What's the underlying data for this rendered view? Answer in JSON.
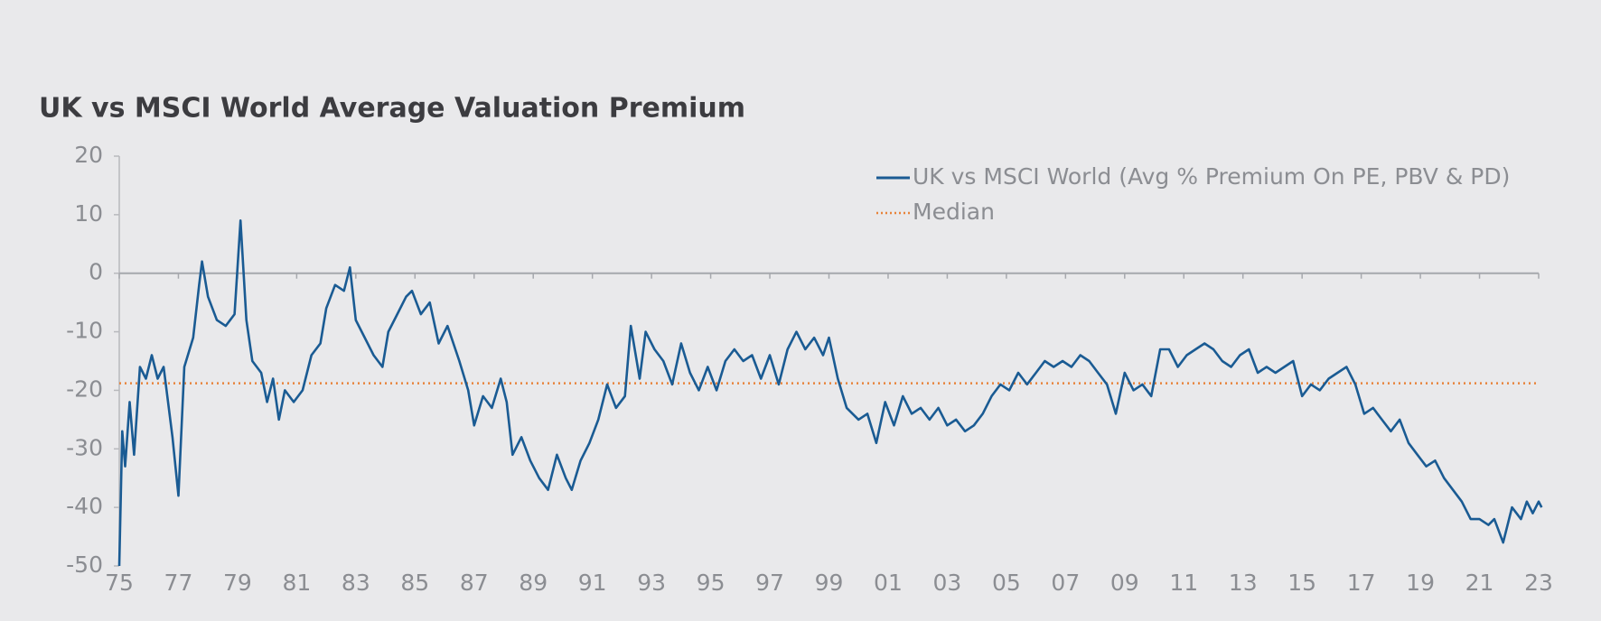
{
  "chart_data": {
    "type": "line",
    "title": "UK vs MSCI World Average Valuation Premium",
    "x": [
      1975.0,
      1975.1,
      1975.2,
      1975.35,
      1975.5,
      1975.7,
      1975.9,
      1976.1,
      1976.3,
      1976.5,
      1976.8,
      1977.0,
      1977.2,
      1977.5,
      1977.7,
      1977.8,
      1978.0,
      1978.3,
      1978.6,
      1978.9,
      1979.1,
      1979.3,
      1979.5,
      1979.8,
      1980.0,
      1980.2,
      1980.4,
      1980.6,
      1980.9,
      1981.2,
      1981.5,
      1981.8,
      1982.0,
      1982.3,
      1982.6,
      1982.8,
      1983.0,
      1983.3,
      1983.6,
      1983.9,
      1984.1,
      1984.4,
      1984.7,
      1984.9,
      1985.2,
      1985.5,
      1985.8,
      1986.1,
      1986.5,
      1986.8,
      1987.0,
      1987.3,
      1987.6,
      1987.9,
      1988.1,
      1988.3,
      1988.6,
      1988.9,
      1989.2,
      1989.5,
      1989.8,
      1990.1,
      1990.3,
      1990.6,
      1990.9,
      1991.2,
      1991.5,
      1991.8,
      1992.1,
      1992.3,
      1992.6,
      1992.8,
      1993.1,
      1993.4,
      1993.7,
      1994.0,
      1994.3,
      1994.6,
      1994.9,
      1995.2,
      1995.5,
      1995.8,
      1996.1,
      1996.4,
      1996.7,
      1997.0,
      1997.3,
      1997.6,
      1997.9,
      1998.2,
      1998.5,
      1998.8,
      1999.0,
      1999.3,
      1999.6,
      2000.0,
      2000.3,
      2000.6,
      2000.9,
      2001.2,
      2001.5,
      2001.8,
      2002.1,
      2002.4,
      2002.7,
      2003.0,
      2003.3,
      2003.6,
      2003.9,
      2004.2,
      2004.5,
      2004.8,
      2005.1,
      2005.4,
      2005.7,
      2006.0,
      2006.3,
      2006.6,
      2006.9,
      2007.2,
      2007.5,
      2007.8,
      2008.1,
      2008.4,
      2008.7,
      2009.0,
      2009.3,
      2009.6,
      2009.9,
      2010.2,
      2010.5,
      2010.8,
      2011.1,
      2011.4,
      2011.7,
      2012.0,
      2012.3,
      2012.6,
      2012.9,
      2013.2,
      2013.5,
      2013.8,
      2014.1,
      2014.4,
      2014.7,
      2015.0,
      2015.3,
      2015.6,
      2015.9,
      2016.2,
      2016.5,
      2016.8,
      2017.1,
      2017.4,
      2017.7,
      2018.0,
      2018.3,
      2018.6,
      2018.9,
      2019.2,
      2019.5,
      2019.8,
      2020.1,
      2020.4,
      2020.7,
      2021.0,
      2021.3,
      2021.5,
      2021.8,
      2022.1,
      2022.4,
      2022.6,
      2022.8,
      2023.0,
      2023.1
    ],
    "series": [
      {
        "name": "UK vs MSCI World (Avg % Premium On PE, PBV & PD)",
        "color": "#1a5b93",
        "values": [
          -50,
          -27,
          -33,
          -22,
          -31,
          -16,
          -18,
          -14,
          -18,
          -16,
          -28,
          -38,
          -16,
          -11,
          -2,
          2,
          -4,
          -8,
          -9,
          -7,
          9,
          -8,
          -15,
          -17,
          -22,
          -18,
          -25,
          -20,
          -22,
          -20,
          -14,
          -12,
          -6,
          -2,
          -3,
          1,
          -8,
          -11,
          -14,
          -16,
          -10,
          -7,
          -4,
          -3,
          -7,
          -5,
          -12,
          -9,
          -15,
          -20,
          -26,
          -21,
          -23,
          -18,
          -22,
          -31,
          -28,
          -32,
          -35,
          -37,
          -31,
          -35,
          -37,
          -32,
          -29,
          -25,
          -19,
          -23,
          -21,
          -9,
          -18,
          -10,
          -13,
          -15,
          -19,
          -12,
          -17,
          -20,
          -16,
          -20,
          -15,
          -13,
          -15,
          -14,
          -18,
          -14,
          -19,
          -13,
          -10,
          -13,
          -11,
          -14,
          -11,
          -18,
          -23,
          -25,
          -24,
          -29,
          -22,
          -26,
          -21,
          -24,
          -23,
          -25,
          -23,
          -26,
          -25,
          -27,
          -26,
          -24,
          -21,
          -19,
          -20,
          -17,
          -19,
          -17,
          -15,
          -16,
          -15,
          -16,
          -14,
          -15,
          -17,
          -19,
          -24,
          -17,
          -20,
          -19,
          -21,
          -13,
          -13,
          -16,
          -14,
          -13,
          -12,
          -13,
          -15,
          -16,
          -14,
          -13,
          -17,
          -16,
          -17,
          -16,
          -15,
          -21,
          -19,
          -20,
          -18,
          -17,
          -16,
          -19,
          -24,
          -23,
          -25,
          -27,
          -25,
          -29,
          -31,
          -33,
          -32,
          -35,
          -37,
          -39,
          -42,
          -42,
          -43,
          -42,
          -46,
          -40,
          -42,
          -39,
          -41,
          -39,
          -40
        ]
      }
    ],
    "reference_lines": [
      {
        "name": "Median",
        "color": "#e8833a",
        "value": -18.8,
        "style": "dotted"
      }
    ],
    "xlim": [
      1975,
      2023
    ],
    "xticks": [
      {
        "value": 1975,
        "label": "75"
      },
      {
        "value": 1977,
        "label": "77"
      },
      {
        "value": 1979,
        "label": "79"
      },
      {
        "value": 1981,
        "label": "81"
      },
      {
        "value": 1983,
        "label": "83"
      },
      {
        "value": 1985,
        "label": "85"
      },
      {
        "value": 1987,
        "label": "87"
      },
      {
        "value": 1989,
        "label": "89"
      },
      {
        "value": 1991,
        "label": "91"
      },
      {
        "value": 1993,
        "label": "93"
      },
      {
        "value": 1995,
        "label": "95"
      },
      {
        "value": 1997,
        "label": "97"
      },
      {
        "value": 1999,
        "label": "99"
      },
      {
        "value": 2001,
        "label": "01"
      },
      {
        "value": 2003,
        "label": "03"
      },
      {
        "value": 2005,
        "label": "05"
      },
      {
        "value": 2007,
        "label": "07"
      },
      {
        "value": 2009,
        "label": "09"
      },
      {
        "value": 2011,
        "label": "11"
      },
      {
        "value": 2013,
        "label": "13"
      },
      {
        "value": 2015,
        "label": "15"
      },
      {
        "value": 2017,
        "label": "17"
      },
      {
        "value": 2019,
        "label": "19"
      },
      {
        "value": 2021,
        "label": "21"
      },
      {
        "value": 2023,
        "label": "23"
      }
    ],
    "ylim": [
      -50,
      20
    ],
    "yticks": [
      20,
      10,
      0,
      -10,
      -20,
      -30,
      -40,
      -50
    ],
    "legend": "top-right"
  }
}
